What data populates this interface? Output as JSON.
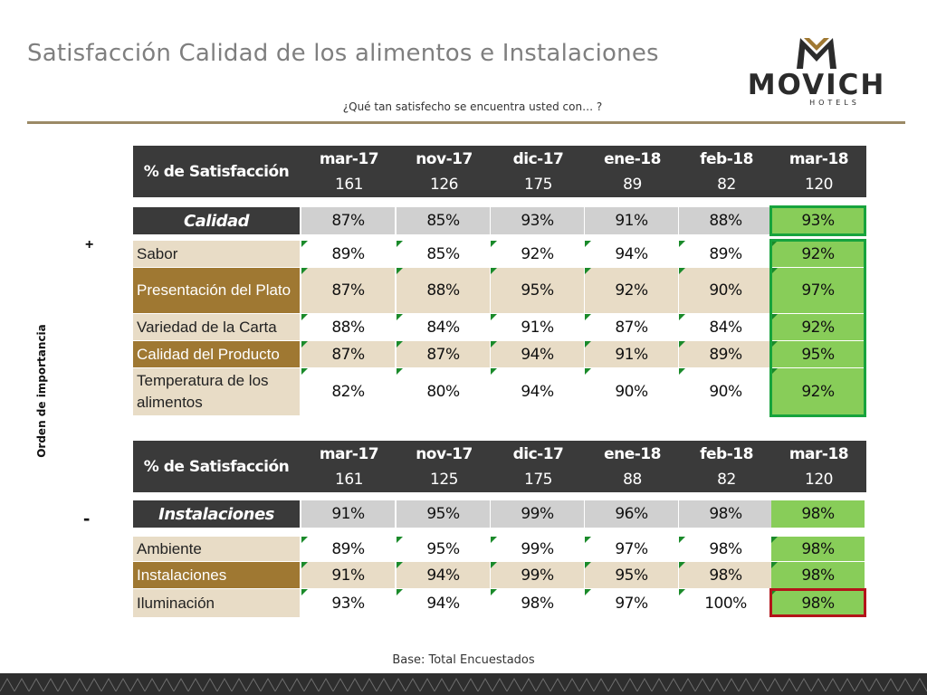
{
  "header": {
    "title": "Satisfacción Calidad de los alimentos e Instalaciones",
    "subtitle": "¿Qué tan satisfecho se encuentra usted con… ?"
  },
  "logo": {
    "word": "MOVICH",
    "sub": "HOTELS"
  },
  "side": {
    "axis_label": "Orden de importancia",
    "plus": "+",
    "minus": "-"
  },
  "table1": {
    "header_label": "% de Satisfacción",
    "months": [
      "mar-17",
      "nov-17",
      "dic-17",
      "ene-18",
      "feb-18",
      "mar-18"
    ],
    "bases": [
      "161",
      "126",
      "175",
      "89",
      "82",
      "120"
    ],
    "category": {
      "label": "Calidad",
      "values": [
        "87%",
        "85%",
        "93%",
        "91%",
        "88%",
        "93%"
      ]
    },
    "rows": [
      {
        "label": "Sabor",
        "values": [
          "89%",
          "85%",
          "92%",
          "94%",
          "89%",
          "92%"
        ]
      },
      {
        "label": "Presentación del Plato",
        "values": [
          "87%",
          "88%",
          "95%",
          "92%",
          "90%",
          "97%"
        ]
      },
      {
        "label": "Variedad de la Carta",
        "values": [
          "88%",
          "84%",
          "91%",
          "87%",
          "84%",
          "92%"
        ]
      },
      {
        "label": "Calidad del Producto",
        "values": [
          "87%",
          "87%",
          "94%",
          "91%",
          "89%",
          "95%"
        ]
      },
      {
        "label": "Temperatura de los alimentos",
        "values": [
          "82%",
          "80%",
          "94%",
          "90%",
          "90%",
          "92%"
        ]
      }
    ]
  },
  "table2": {
    "header_label": "% de Satisfacción",
    "months": [
      "mar-17",
      "nov-17",
      "dic-17",
      "ene-18",
      "feb-18",
      "mar-18"
    ],
    "bases": [
      "161",
      "125",
      "175",
      "88",
      "82",
      "120"
    ],
    "category": {
      "label": "Instalaciones",
      "values": [
        "91%",
        "95%",
        "99%",
        "96%",
        "98%",
        "98%"
      ]
    },
    "rows": [
      {
        "label": "Ambiente",
        "values": [
          "89%",
          "95%",
          "99%",
          "97%",
          "98%",
          "98%"
        ]
      },
      {
        "label": "Instalaciones",
        "values": [
          "91%",
          "94%",
          "99%",
          "95%",
          "98%",
          "98%"
        ]
      },
      {
        "label": "Iluminación",
        "values": [
          "93%",
          "94%",
          "98%",
          "97%",
          "100%",
          "98%"
        ]
      }
    ]
  },
  "footer": {
    "note": "Base: Total Encuestados"
  },
  "colors": {
    "header_bg": "#3a3a3a",
    "beige": "#e8dcc6",
    "brown": "#9f7832",
    "highlight_green": "#88cd59",
    "border_green": "#17a33d",
    "border_red": "#b3141a",
    "rule": "#9b8a66"
  }
}
